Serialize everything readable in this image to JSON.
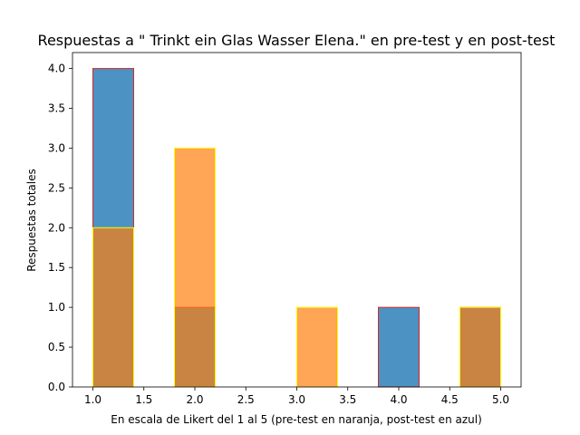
{
  "chart_data": {
    "type": "histogram",
    "title": "Respuestas a \" Trinkt ein Glas Wasser Elena.\" en pre-test y en post-test",
    "xlabel": "En escala de Likert del 1 al 5 (pre-test en naranja, post-test en azul)",
    "ylabel": "Respuestas totales",
    "xlim": [
      0.8,
      5.2
    ],
    "ylim": [
      0,
      4.2
    ],
    "xticks": [
      "1.0",
      "1.5",
      "2.0",
      "2.5",
      "3.0",
      "3.5",
      "4.0",
      "4.5",
      "5.0"
    ],
    "yticks": [
      "0.0",
      "0.5",
      "1.0",
      "1.5",
      "2.0",
      "2.5",
      "3.0",
      "3.5",
      "4.0"
    ],
    "bin_edges": [
      1.0,
      1.4,
      1.8,
      2.2,
      2.6,
      3.0,
      3.4,
      3.8,
      4.2,
      4.6,
      5.0
    ],
    "series": [
      {
        "counts": [
          4,
          0,
          1,
          0,
          0,
          0,
          0,
          1,
          0,
          1
        ],
        "fill": "#1f77b4",
        "edge": "#d62728",
        "alpha": 0.8
      },
      {
        "counts": [
          2,
          0,
          3,
          0,
          0,
          1,
          0,
          0,
          0,
          1
        ],
        "fill": "#ff7f0e",
        "edge": "#ffff00",
        "alpha": 0.7
      }
    ]
  }
}
